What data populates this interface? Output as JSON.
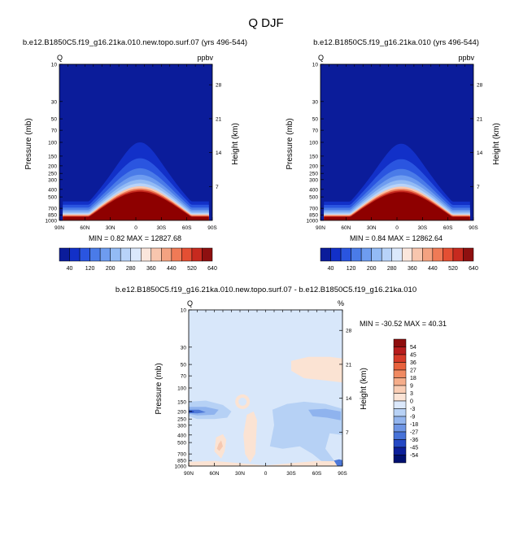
{
  "figure_title": "Q DJF",
  "chart_data": [
    {
      "type": "heatmap",
      "id": "panel-left",
      "title": "b.e12.B1850C5.f19_g16.21ka.010.new.topo.surf.07 (yrs 496-544)",
      "left_label": "Q",
      "right_label": "ppbv",
      "ylabel": "Pressure (mb)",
      "ylabel_right": "Height (km)",
      "x_ticks": [
        "90N",
        "60N",
        "30N",
        "0",
        "30S",
        "60S",
        "90S"
      ],
      "y_ticks": [
        "10",
        "30",
        "50",
        "70",
        "100",
        "150",
        "200",
        "250",
        "300",
        "400",
        "500",
        "700",
        "850",
        "1000"
      ],
      "height_ticks": [
        "28",
        "21",
        "14",
        "7"
      ],
      "stats": {
        "min": 0.82,
        "max": 12827.68
      },
      "stats_text": "MIN =   0.82   MAX = 12827.68",
      "colorbar_labels": [
        "40",
        "120",
        "200",
        "280",
        "360",
        "440",
        "520",
        "640"
      ],
      "colorbar_colors": [
        "#0b1c9a",
        "#1230c8",
        "#2a55e0",
        "#4a7be8",
        "#6e9cf0",
        "#93bbf5",
        "#b8d3f9",
        "#dbe8fb",
        "#fbe6dc",
        "#f8c6ae",
        "#f4a281",
        "#ef7a56",
        "#e44f33",
        "#c72a1f",
        "#8e1010"
      ],
      "extreme_color": "#8e0000"
    },
    {
      "type": "heatmap",
      "id": "panel-right",
      "title": "b.e12.B1850C5.f19_g16.21ka.010 (yrs 496-544)",
      "left_label": "Q",
      "right_label": "ppbv",
      "ylabel": "Pressure (mb)",
      "ylabel_right": "Height (km)",
      "x_ticks": [
        "90N",
        "60N",
        "30N",
        "0",
        "30S",
        "60S",
        "90S"
      ],
      "y_ticks": [
        "10",
        "30",
        "50",
        "70",
        "100",
        "150",
        "200",
        "250",
        "300",
        "400",
        "500",
        "700",
        "850",
        "1000"
      ],
      "height_ticks": [
        "28",
        "21",
        "14",
        "7"
      ],
      "stats": {
        "min": 0.84,
        "max": 12862.64
      },
      "stats_text": "MIN =   0.84   MAX = 12862.64",
      "colorbar_labels": [
        "40",
        "120",
        "200",
        "280",
        "360",
        "440",
        "520",
        "640"
      ],
      "colorbar_colors": [
        "#0b1c9a",
        "#1230c8",
        "#2a55e0",
        "#4a7be8",
        "#6e9cf0",
        "#93bbf5",
        "#b8d3f9",
        "#dbe8fb",
        "#fbe6dc",
        "#f8c6ae",
        "#f4a281",
        "#ef7a56",
        "#e44f33",
        "#c72a1f",
        "#8e1010"
      ],
      "extreme_color": "#8e0000"
    },
    {
      "type": "heatmap",
      "id": "panel-diff",
      "title": "b.e12.B1850C5.f19_g16.21ka.010.new.topo.surf.07 - b.e12.B1850C5.f19_g16.21ka.010",
      "left_label": "Q",
      "right_label": "%",
      "ylabel": "Pressure (mb)",
      "ylabel_right": "Height (km)",
      "x_ticks": [
        "90N",
        "60N",
        "30N",
        "0",
        "30S",
        "60S",
        "90S"
      ],
      "y_ticks": [
        "10",
        "30",
        "50",
        "70",
        "100",
        "150",
        "200",
        "250",
        "300",
        "400",
        "500",
        "700",
        "850",
        "1000"
      ],
      "height_ticks": [
        "28",
        "21",
        "14",
        "7"
      ],
      "stats": {
        "min": -30.52,
        "max": 40.31
      },
      "stats_text": "MIN = -30.52  MAX =  40.31",
      "colorbar_labels": [
        "54",
        "45",
        "36",
        "27",
        "18",
        "9",
        "3",
        "0",
        "-3",
        "-9",
        "-18",
        "-27",
        "-36",
        "-45",
        "-54"
      ],
      "colorbar_colors": [
        "#8e0d0d",
        "#b71c1c",
        "#d63a28",
        "#e8623d",
        "#f08a62",
        "#f5ad8a",
        "#f9cdb4",
        "#fbe4d6",
        "#dbe8fb",
        "#b8d2f6",
        "#93b5ee",
        "#6e95e4",
        "#4772d8",
        "#2448c4",
        "#0c1f9a",
        "#001070"
      ],
      "background_color": "#d8e7fa",
      "pos_light_color": "#fbe3d3",
      "pos_mid_color": "#f6c8b0",
      "neg_light_color": "#b6d1f5",
      "neg_mid_color": "#8fb3ee",
      "neg_strong_color": "#4d78d8",
      "neg_deep_color": "#1f45c2"
    }
  ]
}
